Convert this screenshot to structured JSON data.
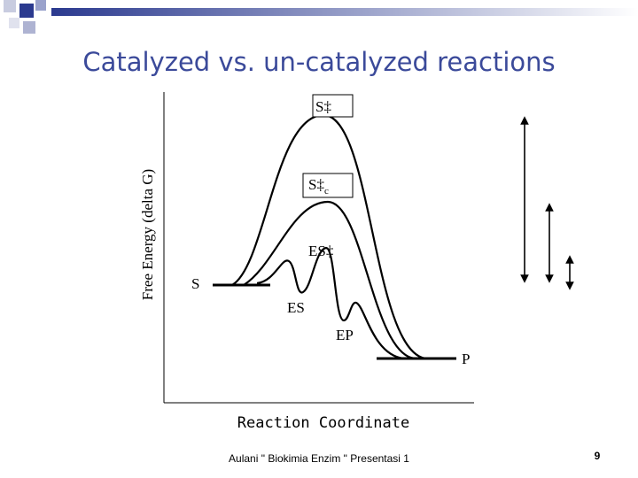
{
  "header": {
    "title": "Catalyzed vs. un-catalyzed reactions"
  },
  "diagram": {
    "y_axis_label": "Free Energy (delta G)",
    "x_axis_label": "Reaction Coordinate",
    "labels": {
      "s_transition": "S‡",
      "s_transition_catalyzed": "S‡",
      "catalyzed_subscript": "c",
      "es_transition": "ES‡",
      "s": "S",
      "es": "ES",
      "ep": "EP",
      "p": "P"
    }
  },
  "footer": {
    "text": "Aulani \" Biokimia Enzim \" Presentasi 1",
    "page_number": "9"
  }
}
